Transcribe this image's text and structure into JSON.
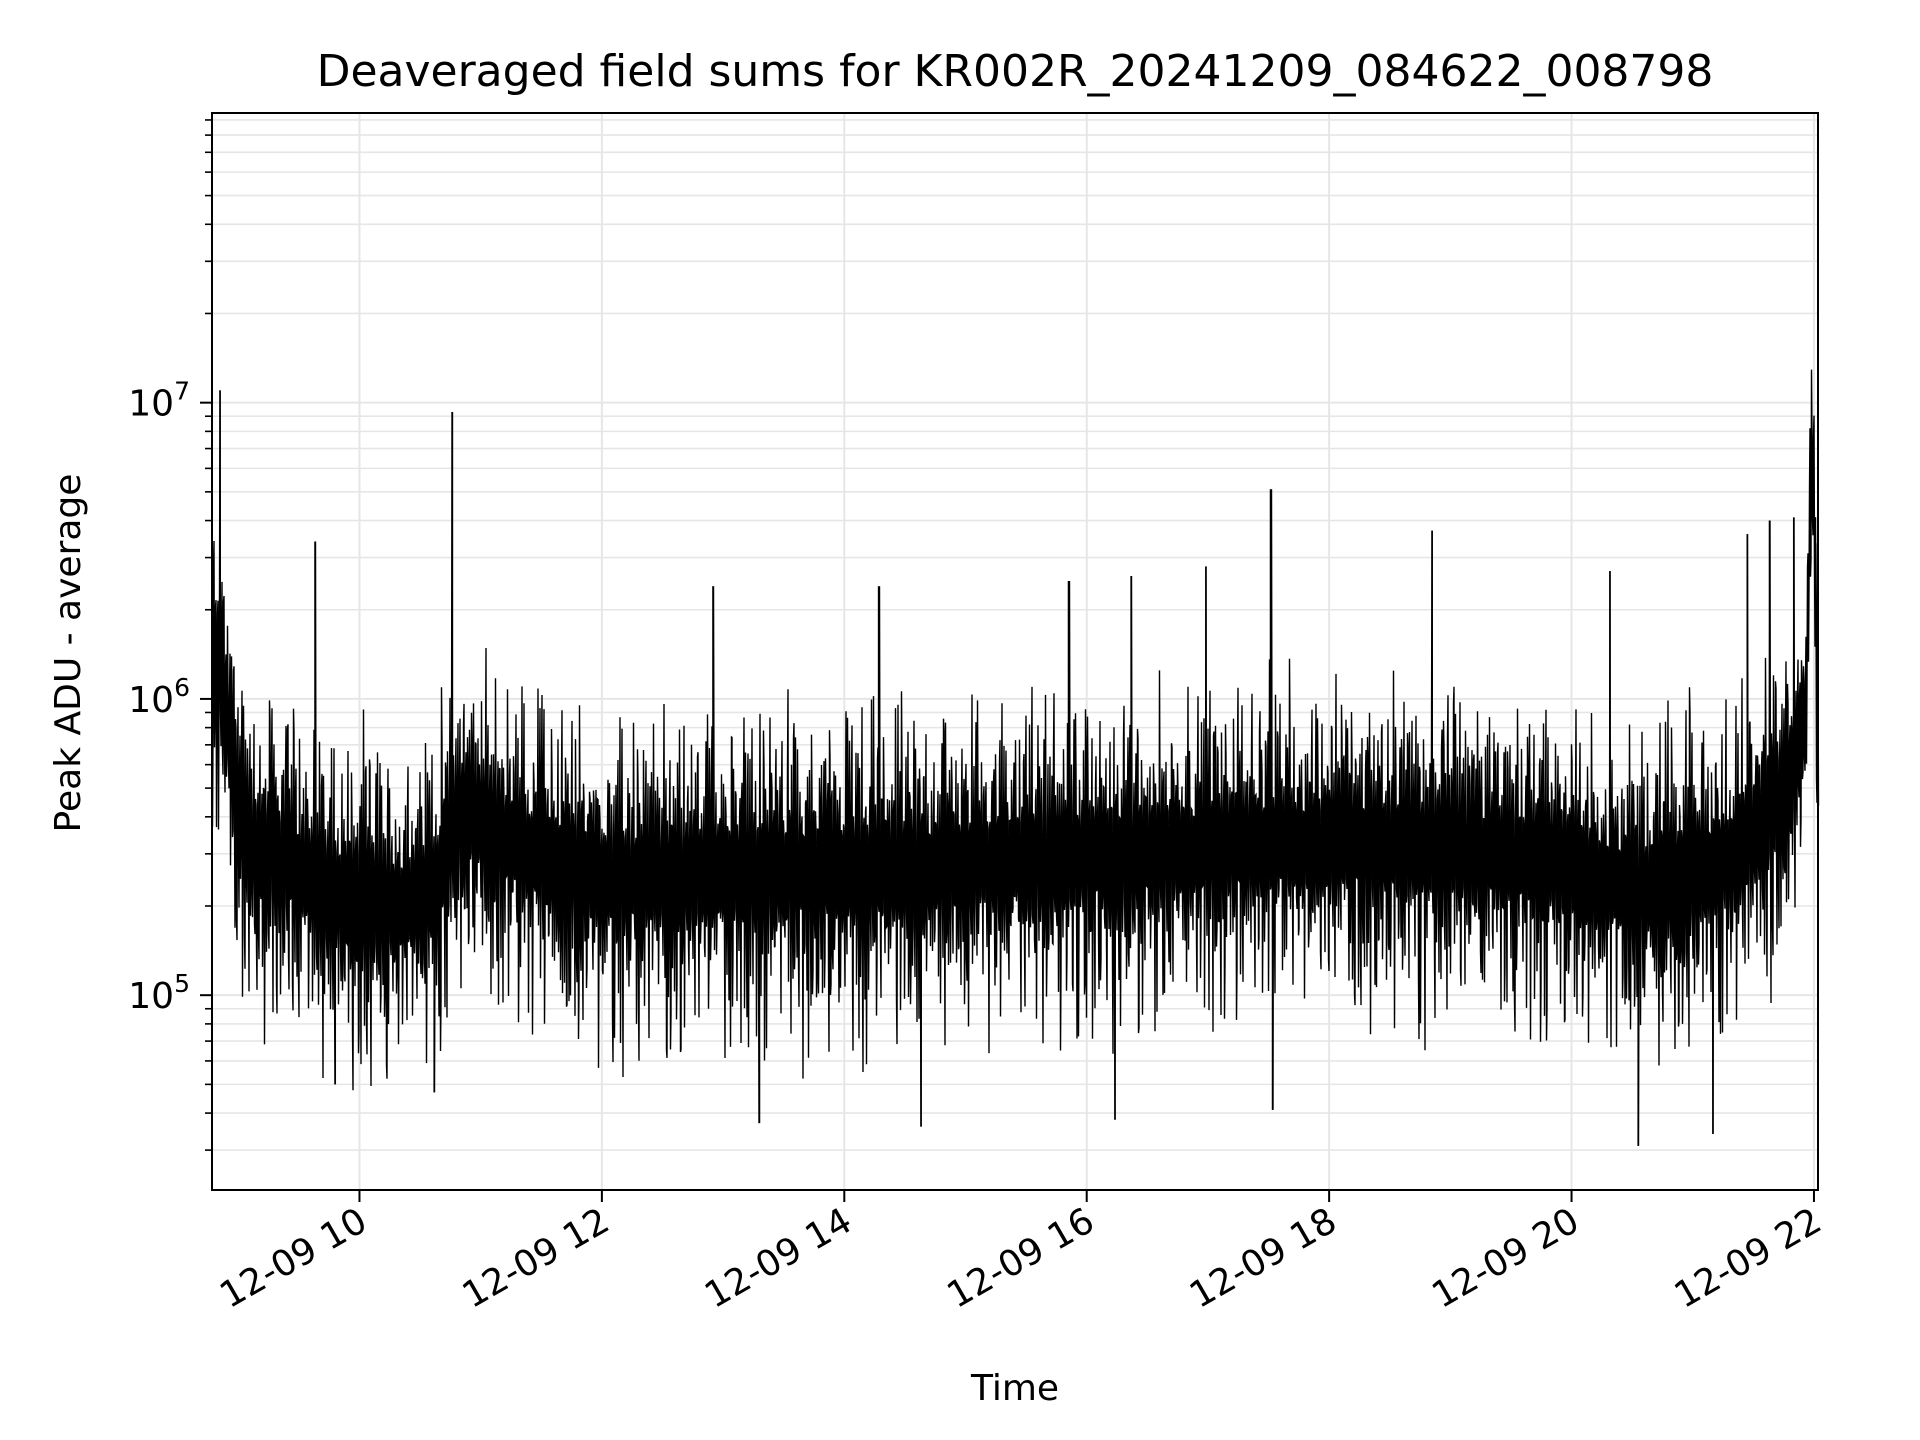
{
  "chart_data": {
    "type": "line",
    "title": "Deaveraged field sums for KR002R_20241209_084622_008798",
    "xlabel": "Time",
    "ylabel": "Peak ADU - average",
    "yscale": "log",
    "grid": true,
    "x_range": [
      "12-09 08:47",
      "12-09 22:02"
    ],
    "ylim": [
      22000,
      95000000
    ],
    "x_ticks": [
      {
        "label": "12-09 10",
        "value": "12-09 10:00"
      },
      {
        "label": "12-09 12",
        "value": "12-09 12:00"
      },
      {
        "label": "12-09 14",
        "value": "12-09 14:00"
      },
      {
        "label": "12-09 16",
        "value": "12-09 16:00"
      },
      {
        "label": "12-09 18",
        "value": "12-09 18:00"
      },
      {
        "label": "12-09 20",
        "value": "12-09 20:00"
      },
      {
        "label": "12-09 22",
        "value": "12-09 22:00"
      }
    ],
    "y_ticks": [
      {
        "base": "10",
        "exp": "5",
        "value": 100000
      },
      {
        "base": "10",
        "exp": "6",
        "value": 1000000
      },
      {
        "base": "10",
        "exp": "7",
        "value": 10000000
      }
    ],
    "series": [
      {
        "color": "#000000",
        "x": [
          "12-09 08:47",
          "12-09 08:50",
          "12-09 08:52",
          "12-09 08:55",
          "12-09 08:58",
          "12-09 09:02",
          "12-09 09:06",
          "12-09 09:10",
          "12-09 09:15",
          "12-09 09:20",
          "12-09 09:26",
          "12-09 09:32",
          "12-09 09:38",
          "12-09 09:45",
          "12-09 09:52",
          "12-09 10:00",
          "12-09 10:10",
          "12-09 10:20",
          "12-09 10:30",
          "12-09 10:40",
          "12-09 10:45",
          "12-09 10:50",
          "12-09 11:00",
          "12-09 11:15",
          "12-09 11:30",
          "12-09 11:45",
          "12-09 12:00",
          "12-09 12:30",
          "12-09 13:00",
          "12-09 13:30",
          "12-09 14:00",
          "12-09 14:30",
          "12-09 15:00",
          "12-09 15:30",
          "12-09 16:00",
          "12-09 16:30",
          "12-09 17:00",
          "12-09 17:30",
          "12-09 18:00",
          "12-09 18:30",
          "12-09 19:00",
          "12-09 19:30",
          "12-09 20:00",
          "12-09 20:30",
          "12-09 21:00",
          "12-09 21:15",
          "12-09 21:30",
          "12-09 21:40",
          "12-09 21:50",
          "12-09 21:56",
          "12-09 21:58",
          "12-09 22:00",
          "12-09 22:01",
          "12-09 22:02"
        ],
        "y": [
          1200000,
          1500000,
          1100000,
          800000,
          500000,
          400000,
          350000,
          300000,
          320000,
          300000,
          280000,
          260000,
          250000,
          240000,
          230000,
          220000,
          210000,
          200000,
          210000,
          260000,
          380000,
          420000,
          380000,
          330000,
          300000,
          280000,
          250000,
          250000,
          260000,
          270000,
          270000,
          270000,
          280000,
          300000,
          300000,
          310000,
          320000,
          330000,
          330000,
          330000,
          320000,
          300000,
          280000,
          230000,
          260000,
          290000,
          350000,
          430000,
          600000,
          900000,
          6000000,
          5500000,
          1000000,
          900000
        ],
        "peaks": [
          {
            "x": "12-09 08:51",
            "y": 11000000
          },
          {
            "x": "12-09 10:46",
            "y": 9300000
          },
          {
            "x": "12-09 17:31",
            "y": 5100000
          },
          {
            "x": "12-09 18:51",
            "y": 3700000
          },
          {
            "x": "12-09 21:27",
            "y": 3600000
          },
          {
            "x": "12-09 21:38",
            "y": 4000000
          },
          {
            "x": "12-09 21:50",
            "y": 4100000
          },
          {
            "x": "12-09 21:59",
            "y": 7000000
          },
          {
            "x": "12-09 09:38",
            "y": 3400000
          },
          {
            "x": "12-09 12:55",
            "y": 2400000
          },
          {
            "x": "12-09 14:17",
            "y": 2400000
          },
          {
            "x": "12-09 15:51",
            "y": 2500000
          },
          {
            "x": "12-09 16:22",
            "y": 2600000
          },
          {
            "x": "12-09 16:59",
            "y": 2800000
          },
          {
            "x": "12-09 20:19",
            "y": 2700000
          }
        ],
        "troughs": [
          {
            "x": "12-09 13:18",
            "y": 37000
          },
          {
            "x": "12-09 14:38",
            "y": 36000
          },
          {
            "x": "12-09 16:14",
            "y": 38000
          },
          {
            "x": "12-09 20:33",
            "y": 31000
          },
          {
            "x": "12-09 21:10",
            "y": 34000
          },
          {
            "x": "12-09 10:37",
            "y": 47000
          },
          {
            "x": "12-09 09:48",
            "y": 50000
          },
          {
            "x": "12-09 17:32",
            "y": 41000
          }
        ]
      }
    ]
  }
}
